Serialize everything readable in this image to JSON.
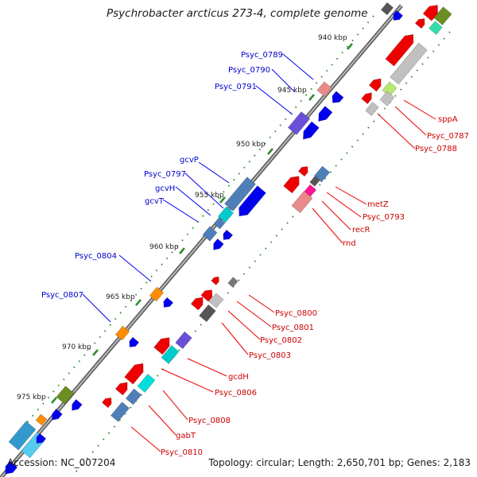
{
  "title": "Psychrobacter arcticus 273-4, complete genome",
  "footer": {
    "accession": "Accession: NC_007204",
    "topology": "Topology: circular; Length: 2,650,701 bp; Genes: 2,183"
  },
  "scale_labels": [
    "940 kbp",
    "945 kbp",
    "950 kbp",
    "955 kbp",
    "960 kbp",
    "965 kbp",
    "970 kbp",
    "975 kbp"
  ],
  "colors": {
    "backbone": "#8a8a8a",
    "forward_label": "#0000cc",
    "reverse_label": "#dd0000",
    "tick": "#2e8b2e"
  },
  "forward_genes": [
    "Psyc_0789",
    "Psyc_0790",
    "Psyc_0791",
    "gcvP",
    "Psyc_0797",
    "gcvH",
    "gcvT",
    "Psyc_0804",
    "Psyc_0807"
  ],
  "reverse_genes": [
    "sppA",
    "Psyc_0787",
    "Psyc_0788",
    "metZ",
    "Psyc_0793",
    "recR",
    "rnd",
    "Psyc_0800",
    "Psyc_0801",
    "Psyc_0802",
    "Psyc_0803",
    "gcdH",
    "Psyc_0806",
    "Psyc_0808",
    "gabT",
    "Psyc_0810"
  ]
}
